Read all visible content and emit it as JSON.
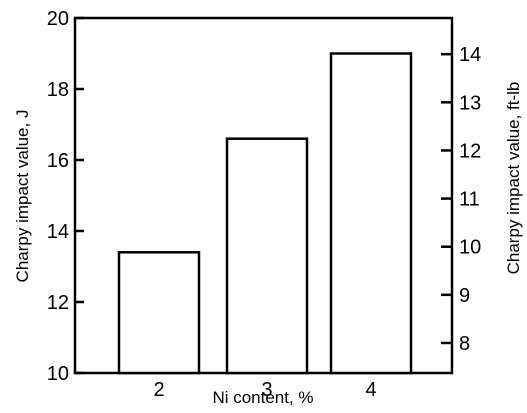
{
  "chart_data": {
    "type": "bar",
    "categories": [
      "2",
      "3",
      "4"
    ],
    "values": [
      13.4,
      16.6,
      19.0
    ],
    "xlabel": "Ni content, %",
    "ylabel": "Charpy impact value, J",
    "ylabel_right": "Charpy impact value, ft-lb",
    "ylim": [
      10,
      20
    ],
    "y_ticks": [
      10,
      12,
      14,
      16,
      18,
      20
    ],
    "y_ticks_right": [
      8,
      9,
      10,
      11,
      12,
      13,
      14
    ],
    "ft_lb_per_J": 0.7376,
    "grid": false,
    "legend": "none"
  }
}
